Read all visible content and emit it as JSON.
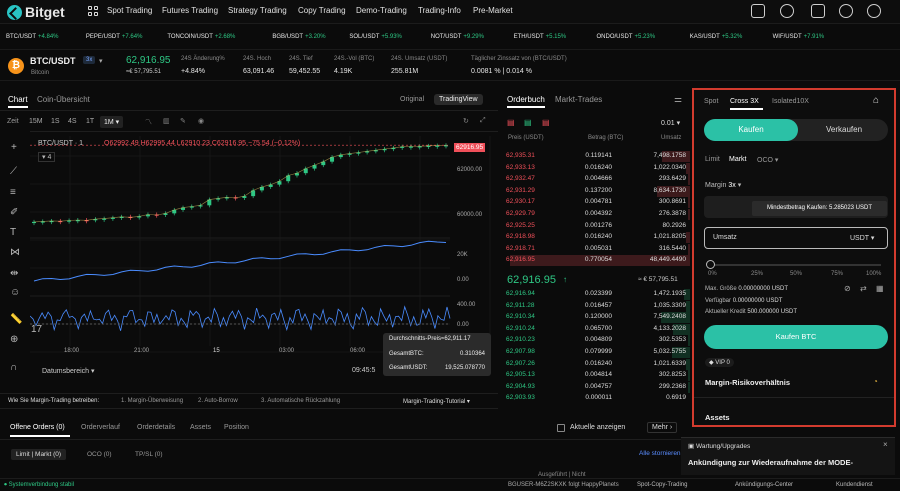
{
  "brand": "Bitget",
  "nav": [
    "Spot Trading",
    "Futures Trading",
    "Strategy Trading",
    "Copy Trading",
    "Demo-Trading",
    "Trading-Info",
    "Pre-Market"
  ],
  "ticker": [
    {
      "pair": "BTC/USDT",
      "chg": "+4.84%"
    },
    {
      "pair": "PEPE/USDT",
      "chg": "+7.64%"
    },
    {
      "pair": "TONCOIN/USDT",
      "chg": "+2.68%"
    },
    {
      "pair": "BGB/USDT",
      "chg": "+3.20%"
    },
    {
      "pair": "SOL/USDT",
      "chg": "+5.93%"
    },
    {
      "pair": "NOT/USDT",
      "chg": "+9.29%"
    },
    {
      "pair": "ETH/USDT",
      "chg": "+5.15%"
    },
    {
      "pair": "ONDO/USDT",
      "chg": "+5.23%"
    },
    {
      "pair": "KAS/USDT",
      "chg": "+5.32%"
    },
    {
      "pair": "WIF/USDT",
      "chg": "+7.91%"
    }
  ],
  "pair": {
    "symbol": "BTC/USDT",
    "leverage": "3x",
    "name": "Bitcoin",
    "price": "62,916.95",
    "price_fiat": "≈€ 57,795.51",
    "stats": [
      {
        "label": "24S Änderung%",
        "value": "+4.84%"
      },
      {
        "label": "24S. Hoch",
        "value": "63,091.46"
      },
      {
        "label": "24S. Tief",
        "value": "59,452.55"
      },
      {
        "label": "24S.-Vol (BTC)",
        "value": "4.19K"
      },
      {
        "label": "24S. Umsatz (USDT)",
        "value": "255.81M"
      },
      {
        "label": "Täglicher Zinssatz von (BTC/USDT)",
        "value": "0.0081 % | 0.014 %"
      }
    ]
  },
  "chart": {
    "tabs": [
      "Chart",
      "Coin-Übersicht"
    ],
    "views": [
      "Original",
      "TradingView"
    ],
    "intervals": [
      "Zeit",
      "15M",
      "1S",
      "4S",
      "1T",
      "1M"
    ],
    "ohlc": "O62992.49 H62995.44 L62910.23 C62916.95 −75.54 (−0.12%)",
    "header": "BTC/USDT · 1",
    "counter": "4",
    "last_price": "62916.95",
    "yticks": [
      "62000.00",
      "60000.00",
      "20K",
      "0.00",
      "400.00",
      "0.00"
    ],
    "xticks": [
      "18:00",
      "21:00",
      "15",
      "03:00",
      "06:00",
      "09:45:5"
    ],
    "range_label": "Datumsbereich",
    "tooltip": [
      {
        "label": "Durchschnitts-Preis≈",
        "value": "62,911.17"
      },
      {
        "label": "GesamtBTC:",
        "value": "0.310364"
      },
      {
        "label": "GesamtUSDT:",
        "value": "19,525.078770"
      }
    ]
  },
  "chart_data": {
    "type": "line",
    "series": [
      {
        "values": [
          59580,
          59600,
          59620,
          59610,
          59640,
          59660,
          59650,
          59700,
          59720,
          59760,
          59800,
          59780,
          59820,
          59900,
          59880,
          59950,
          60100,
          60200,
          60250,
          60300,
          60550,
          60600,
          60650,
          60620,
          60700,
          60950,
          61100,
          61200,
          61350,
          61600,
          61700,
          61900,
          62050,
          62200,
          62400,
          62500,
          62550,
          62600,
          62650,
          62700,
          62750,
          62800,
          62850,
          62860,
          62870,
          62890,
          62900,
          62916.95
        ]
      }
    ]
  },
  "orderbook": {
    "tabs": [
      "Orderbuch",
      "Markt-Trades"
    ],
    "precision": "0.01",
    "headers": [
      "Preis (USDT)",
      "Betrag (BTC)",
      "Umsatz"
    ],
    "asks": [
      [
        "62,935.31",
        "0.119141",
        "7,498.1758"
      ],
      [
        "62,933.13",
        "0.016240",
        "1,022.0340"
      ],
      [
        "62,932.47",
        "0.004666",
        "293.6429"
      ],
      [
        "62,931.29",
        "0.137200",
        "8,634.1730"
      ],
      [
        "62,930.17",
        "0.004781",
        "300.8691"
      ],
      [
        "62,929.79",
        "0.004392",
        "276.3878"
      ],
      [
        "62,925.25",
        "0.001276",
        "80.2926"
      ],
      [
        "62,918.98",
        "0.016240",
        "1,021.8205"
      ],
      [
        "62,918.71",
        "0.005031",
        "316.5440"
      ],
      [
        "62,916.95",
        "0.770054",
        "48,449.4490"
      ]
    ],
    "mid_price": "62,916.95",
    "mid_fiat": "≈ € 57,795.51",
    "bids": [
      [
        "62,916.94",
        "0.023399",
        "1,472.1935"
      ],
      [
        "62,911.28",
        "0.016457",
        "1,035.3309"
      ],
      [
        "62,910.34",
        "0.120000",
        "7,549.2408"
      ],
      [
        "62,910.24",
        "0.065700",
        "4,133.2028"
      ],
      [
        "62,910.23",
        "0.004809",
        "302.5353"
      ],
      [
        "62,907.98",
        "0.079999",
        "5,032.5755"
      ],
      [
        "62,907.26",
        "0.016240",
        "1,021.6339"
      ],
      [
        "62,905.13",
        "0.004814",
        "302.8253"
      ],
      [
        "62,904.93",
        "0.004757",
        "299.2368"
      ],
      [
        "62,903.93",
        "0.000011",
        "0.6919"
      ]
    ],
    "ask_depth": [
      0.15,
      0.02,
      0.01,
      0.18,
      0.01,
      0.01,
      0.0,
      0.02,
      0.01,
      0.98
    ],
    "bid_depth": [
      0.03,
      0.02,
      0.16,
      0.09,
      0.01,
      0.1,
      0.02,
      0.01,
      0.01,
      0.0
    ]
  },
  "trade": {
    "tabs": [
      "Spot",
      "Cross 3X",
      "Isolated10X"
    ],
    "buy": "Kaufen",
    "sell": "Verkaufen",
    "order_types": [
      "Limit",
      "Markt",
      "OCO"
    ],
    "margin_label": "Margin",
    "margin_value": "3x",
    "price_tooltip": "Mindestbetrag Kaufen: 5.285023 USDT",
    "amount_label": "Umsatz",
    "amount_unit": "USDT",
    "slider_marks": [
      "0%",
      "25%",
      "50%",
      "75%",
      "100%"
    ],
    "slider_level": 0,
    "info": [
      {
        "label": "Max. Größe",
        "value": "0.00000000 USDT"
      },
      {
        "label": "Verfügbar",
        "value": "0.00000000 USDT"
      },
      {
        "label": "Aktueller Kredit",
        "value": "500.000000 USDT"
      }
    ],
    "submit": "Kaufen BTC",
    "vip": "VIP 0",
    "risk": "Margin-Risikoverhältnis",
    "assets": "Assets"
  },
  "margin_steps": {
    "lead": "Wie Sie Margin-Trading betreiben:",
    "steps": [
      "1. Margin-Überweisung",
      "2. Auto-Borrow",
      "3. Automatische Rückzahlung"
    ],
    "tutorial": "Margin-Trading-Tutorial"
  },
  "orders": {
    "tabs": [
      "Offene Orders (0)",
      "Orderverlauf",
      "Orderdetails",
      "Assets",
      "Position"
    ],
    "show_current": "Aktuelle anzeigen",
    "more": "Mehr",
    "filters": [
      "Limit | Markt (0)",
      "OCO (0)",
      "TP/SL (0)"
    ],
    "cancel_all": "Alle stornieren",
    "partial": "Ausgeführt | Nicht"
  },
  "notice": {
    "title": "Wartung/Upgrades",
    "text": "Ankündigung zur Wiederaufnahme der MODE-"
  },
  "footer": {
    "status": "Systemverbindung stabil",
    "feed": "BGUSER-M6Z2SKXK folgt HappyPlanets",
    "links": [
      "Spot-Copy-Trading",
      "Ankündigungs-Center",
      "Kundendienst"
    ]
  }
}
